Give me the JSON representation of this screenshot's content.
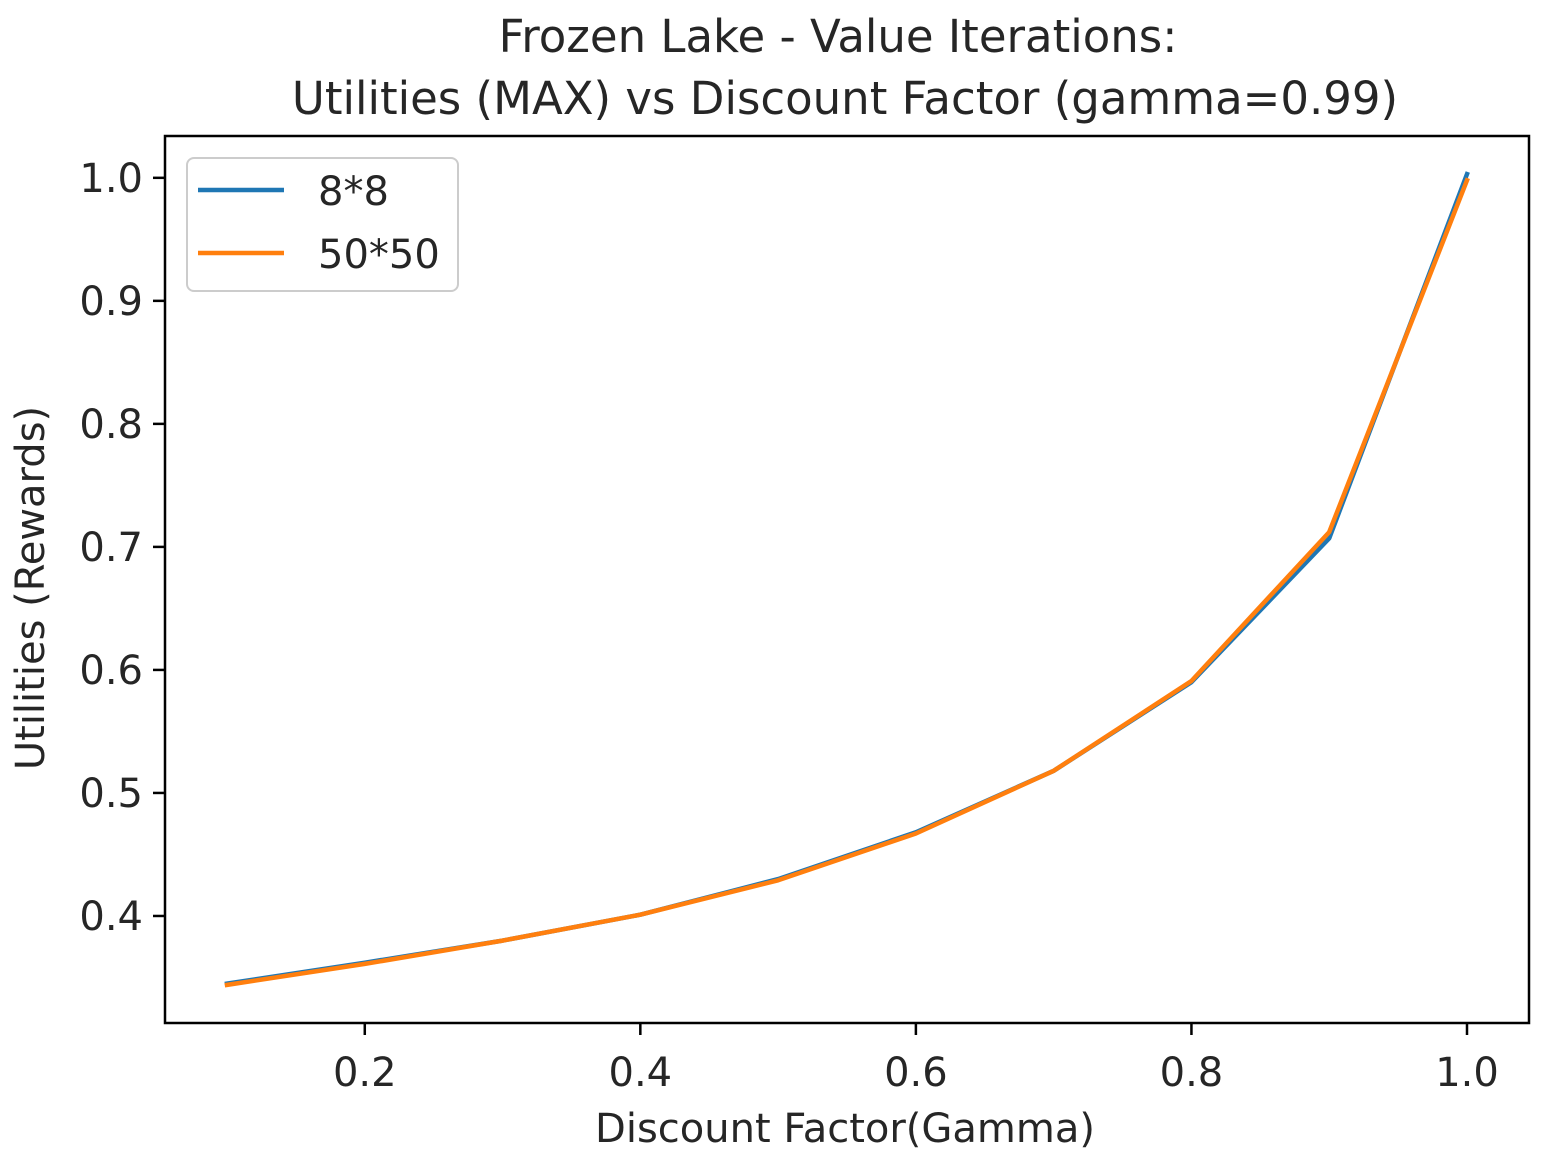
{
  "chart_data": {
    "type": "line",
    "title": [
      "Frozen Lake - Value Iterations:",
      "Utilities (MAX) vs Discount Factor (gamma=0.99)"
    ],
    "xlabel": "Discount Factor(Gamma)",
    "ylabel": "Utilities (Rewards)",
    "xlim": [
      0.055,
      1.045
    ],
    "ylim": [
      0.313,
      1.034
    ],
    "xticks": [
      0.2,
      0.4,
      0.6,
      0.8,
      1.0
    ],
    "xtick_labels": [
      "0.2",
      "0.4",
      "0.6",
      "0.8",
      "1.0"
    ],
    "yticks": [
      0.4,
      0.5,
      0.6,
      0.7,
      0.8,
      0.9,
      1.0
    ],
    "ytick_labels": [
      "0.4",
      "0.5",
      "0.6",
      "0.7",
      "0.8",
      "0.9",
      "1.0"
    ],
    "grid": false,
    "legend_position": "top-left",
    "x": [
      0.1,
      0.2,
      0.3,
      0.4,
      0.5,
      0.6,
      0.7,
      0.8,
      0.9,
      1.0
    ],
    "series": [
      {
        "name": "8*8",
        "color": "#1f77b4",
        "values": [
          0.345,
          0.362,
          0.38,
          0.401,
          0.43,
          0.468,
          0.518,
          0.59,
          0.707,
          1.003
        ]
      },
      {
        "name": "50*50",
        "color": "#ff7f0e",
        "values": [
          0.344,
          0.361,
          0.38,
          0.401,
          0.429,
          0.467,
          0.518,
          0.591,
          0.712,
          0.998
        ]
      }
    ]
  }
}
